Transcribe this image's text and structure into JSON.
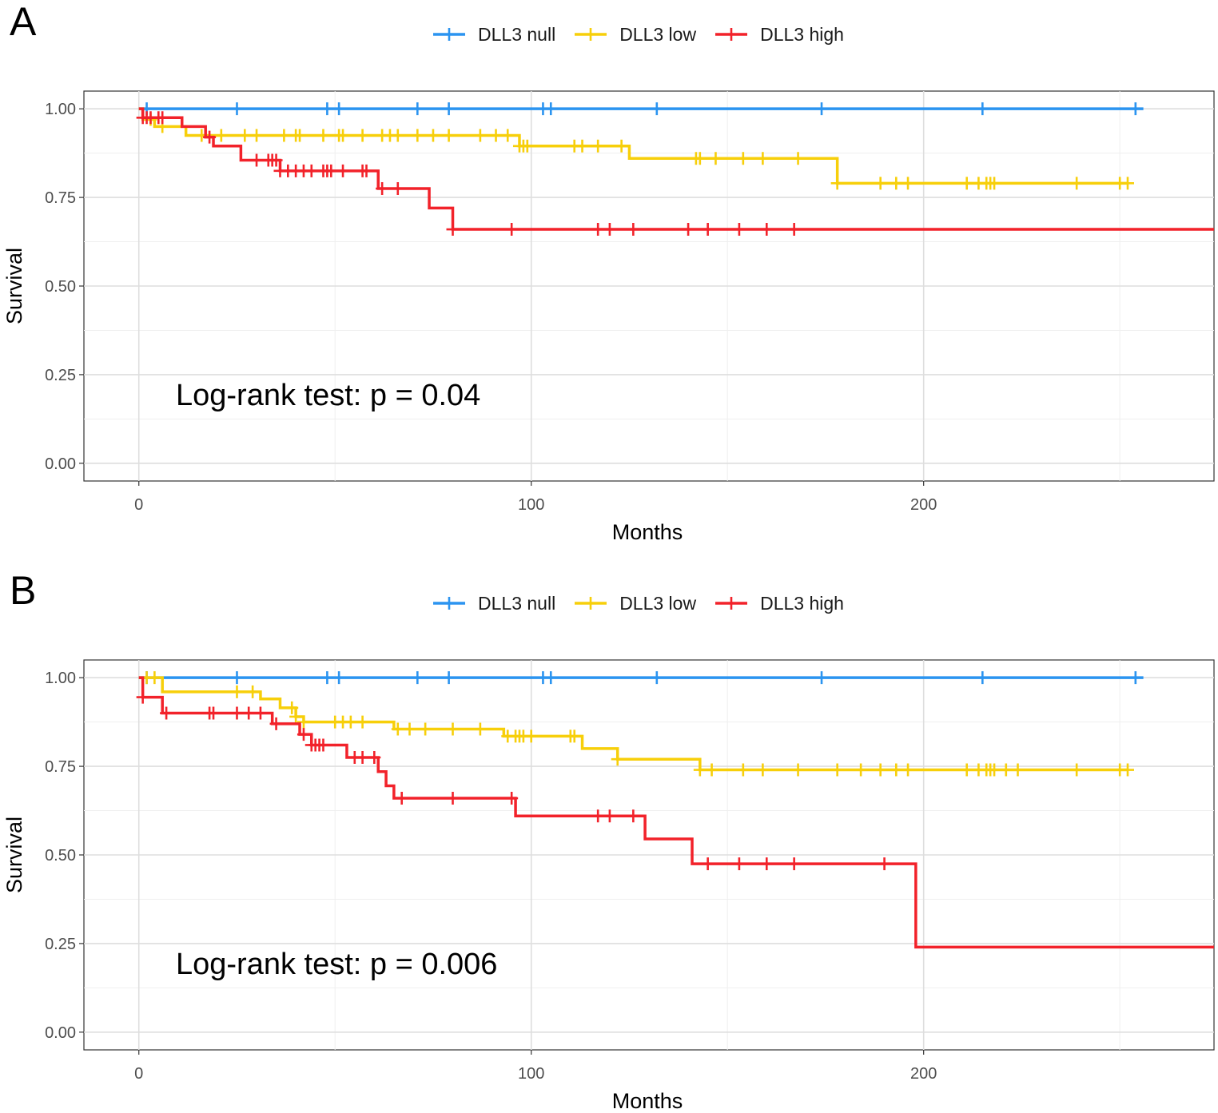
{
  "colors": {
    "null": "#2b94f0",
    "low": "#f7cf0a",
    "high": "#f2222a"
  },
  "chart_data": [
    {
      "type": "line",
      "panel_label": "A",
      "xlabel": "Months",
      "ylabel": "Survival",
      "xlim": [
        -14,
        274
      ],
      "ylim": [
        -0.05,
        1.05
      ],
      "xticks": [
        0,
        100,
        200
      ],
      "xtick_labels": [
        "0",
        "100",
        "200"
      ],
      "yticks": [
        0,
        0.25,
        0.5,
        0.75,
        1.0
      ],
      "ytick_labels": [
        "0.00",
        "0.25",
        "0.50",
        "0.75",
        "1.00"
      ],
      "grid": true,
      "legend_position": "top",
      "legend": [
        "DLL3 null",
        "DLL3 low",
        "DLL3 high"
      ],
      "annotation": "Log-rank test: p = 0.04",
      "series": [
        {
          "name": "DLL3 null",
          "color_key": "null",
          "steps": [
            [
              0,
              1.0
            ],
            [
              256,
              1.0
            ]
          ],
          "censors": [
            2,
            25,
            48,
            51,
            71,
            79,
            103,
            105,
            132,
            174,
            215,
            254
          ]
        },
        {
          "name": "DLL3 low",
          "color_key": "low",
          "steps": [
            [
              0,
              1.0
            ],
            [
              1,
              0.97
            ],
            [
              4,
              0.95
            ],
            [
              12,
              0.925
            ],
            [
              97,
              0.895
            ],
            [
              125,
              0.86
            ],
            [
              178,
              0.79
            ],
            [
              252,
              0.79
            ]
          ],
          "censors": [
            3,
            6,
            16,
            21,
            27,
            30,
            37,
            40,
            41,
            47,
            51,
            52,
            57,
            62,
            64,
            66,
            71,
            75,
            79,
            87,
            91,
            94,
            97,
            98,
            99,
            111,
            113,
            117,
            123,
            142,
            143,
            147,
            154,
            159,
            168,
            178,
            189,
            193,
            196,
            211,
            214,
            216,
            217,
            218,
            239,
            250,
            252
          ]
        },
        {
          "name": "DLL3 high",
          "color_key": "high",
          "steps": [
            [
              0,
              1.0
            ],
            [
              1,
              0.975
            ],
            [
              11,
              0.95
            ],
            [
              17,
              0.92
            ],
            [
              19,
              0.895
            ],
            [
              26,
              0.855
            ],
            [
              36,
              0.825
            ],
            [
              61,
              0.775
            ],
            [
              74,
              0.72
            ],
            [
              80,
              0.66
            ],
            [
              274,
              0.66
            ]
          ],
          "censors": [
            1,
            2,
            3,
            5,
            6,
            18,
            30,
            33,
            34,
            35,
            36,
            38,
            40,
            42,
            44,
            47,
            48,
            49,
            52,
            57,
            58,
            62,
            66,
            80,
            95,
            117,
            120,
            126,
            140,
            145,
            153,
            160,
            167
          ]
        }
      ]
    },
    {
      "type": "line",
      "panel_label": "B",
      "xlabel": "Months",
      "ylabel": "Survival",
      "xlim": [
        -14,
        274
      ],
      "ylim": [
        -0.05,
        1.05
      ],
      "xticks": [
        0,
        100,
        200
      ],
      "xtick_labels": [
        "0",
        "100",
        "200"
      ],
      "yticks": [
        0,
        0.25,
        0.5,
        0.75,
        1.0
      ],
      "ytick_labels": [
        "0.00",
        "0.25",
        "0.50",
        "0.75",
        "1.00"
      ],
      "grid": true,
      "legend_position": "top",
      "legend": [
        "DLL3 null",
        "DLL3 low",
        "DLL3 high"
      ],
      "annotation": "Log-rank test: p = 0.006",
      "series": [
        {
          "name": "DLL3 null",
          "color_key": "null",
          "steps": [
            [
              0,
              1.0
            ],
            [
              256,
              1.0
            ]
          ],
          "censors": [
            2,
            25,
            48,
            51,
            71,
            79,
            103,
            105,
            132,
            174,
            215,
            254
          ]
        },
        {
          "name": "DLL3 low",
          "color_key": "low",
          "steps": [
            [
              0,
              1.0
            ],
            [
              6,
              0.96
            ],
            [
              31,
              0.94
            ],
            [
              36,
              0.915
            ],
            [
              40,
              0.89
            ],
            [
              42,
              0.875
            ],
            [
              65,
              0.855
            ],
            [
              93,
              0.835
            ],
            [
              113,
              0.8
            ],
            [
              122,
              0.77
            ],
            [
              143,
              0.74
            ],
            [
              252,
              0.74
            ]
          ],
          "censors": [
            2,
            4,
            25,
            29,
            39,
            40,
            42,
            50,
            52,
            54,
            57,
            66,
            69,
            73,
            80,
            87,
            94,
            96,
            97,
            98,
            100,
            110,
            111,
            122,
            143,
            146,
            154,
            159,
            168,
            178,
            184,
            189,
            193,
            196,
            211,
            214,
            216,
            217,
            218,
            221,
            224,
            239,
            250,
            252
          ]
        },
        {
          "name": "DLL3 high",
          "color_key": "high",
          "steps": [
            [
              0,
              1.0
            ],
            [
              1,
              0.945
            ],
            [
              6,
              0.9
            ],
            [
              34,
              0.87
            ],
            [
              41,
              0.84
            ],
            [
              44,
              0.81
            ],
            [
              53,
              0.775
            ],
            [
              61,
              0.735
            ],
            [
              63,
              0.695
            ],
            [
              65,
              0.66
            ],
            [
              96,
              0.61
            ],
            [
              129,
              0.545
            ],
            [
              141,
              0.475
            ],
            [
              198,
              0.24
            ],
            [
              274,
              0.24
            ]
          ],
          "censors": [
            1,
            7,
            18,
            19,
            25,
            28,
            31,
            35,
            42,
            44,
            45,
            46,
            47,
            55,
            57,
            60,
            67,
            80,
            95,
            117,
            120,
            126,
            145,
            153,
            160,
            167,
            190
          ]
        }
      ]
    }
  ]
}
